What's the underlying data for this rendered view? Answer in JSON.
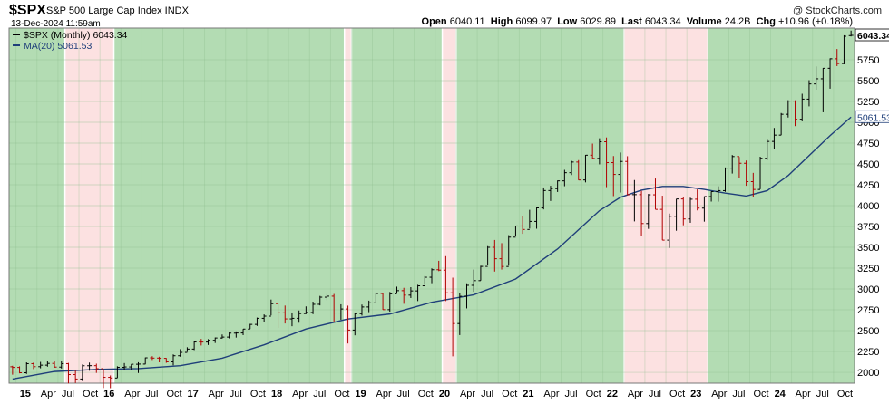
{
  "header": {
    "symbol": "$SPX",
    "name": "S&P 500 Large Cap Index  INDX",
    "date": "13-Dec-2024 11:59am",
    "copyright": "@ StockCharts.com",
    "ohlc": [
      {
        "label": "Open",
        "value": "6040.11"
      },
      {
        "label": "High",
        "value": "6099.97"
      },
      {
        "label": "Low",
        "value": "6029.89"
      },
      {
        "label": "Last",
        "value": "6043.34"
      },
      {
        "label": "Volume",
        "value": "24.2B"
      },
      {
        "label": "Chg",
        "value": "+10.96 (+0.18%)"
      }
    ]
  },
  "chart_data": {
    "type": "ohlc",
    "interval": "monthly",
    "x_start": "2014-12",
    "x_end": "2024-12",
    "y_range": [
      1870,
      6130
    ],
    "y_ticks": [
      2000,
      2250,
      2500,
      2750,
      3000,
      3250,
      3500,
      3750,
      4000,
      4250,
      4500,
      4750,
      5000,
      5250,
      5500,
      5750
    ],
    "x_tick_labels": [
      {
        "date": "2015-01",
        "label": "15"
      },
      {
        "date": "2015-04",
        "label": "Apr"
      },
      {
        "date": "2015-07",
        "label": "Jul"
      },
      {
        "date": "2015-10",
        "label": "Oct"
      },
      {
        "date": "2016-01",
        "label": "16"
      },
      {
        "date": "2016-04",
        "label": "Apr"
      },
      {
        "date": "2016-07",
        "label": "Jul"
      },
      {
        "date": "2016-10",
        "label": "Oct"
      },
      {
        "date": "2017-01",
        "label": "17"
      },
      {
        "date": "2017-04",
        "label": "Apr"
      },
      {
        "date": "2017-07",
        "label": "Jul"
      },
      {
        "date": "2017-10",
        "label": "Oct"
      },
      {
        "date": "2018-01",
        "label": "18"
      },
      {
        "date": "2018-04",
        "label": "Apr"
      },
      {
        "date": "2018-07",
        "label": "Jul"
      },
      {
        "date": "2018-10",
        "label": "Oct"
      },
      {
        "date": "2019-01",
        "label": "19"
      },
      {
        "date": "2019-04",
        "label": "Apr"
      },
      {
        "date": "2019-07",
        "label": "Jul"
      },
      {
        "date": "2019-10",
        "label": "Oct"
      },
      {
        "date": "2020-01",
        "label": "20"
      },
      {
        "date": "2020-04",
        "label": "Apr"
      },
      {
        "date": "2020-07",
        "label": "Jul"
      },
      {
        "date": "2020-10",
        "label": "Oct"
      },
      {
        "date": "2021-01",
        "label": "21"
      },
      {
        "date": "2021-04",
        "label": "Apr"
      },
      {
        "date": "2021-07",
        "label": "Jul"
      },
      {
        "date": "2021-10",
        "label": "Oct"
      },
      {
        "date": "2022-01",
        "label": "22"
      },
      {
        "date": "2022-04",
        "label": "Apr"
      },
      {
        "date": "2022-07",
        "label": "Jul"
      },
      {
        "date": "2022-10",
        "label": "Oct"
      },
      {
        "date": "2023-01",
        "label": "23"
      },
      {
        "date": "2023-04",
        "label": "Apr"
      },
      {
        "date": "2023-07",
        "label": "Jul"
      },
      {
        "date": "2023-10",
        "label": "Oct"
      },
      {
        "date": "2024-01",
        "label": "24"
      },
      {
        "date": "2024-04",
        "label": "Apr"
      },
      {
        "date": "2024-07",
        "label": "Jul"
      },
      {
        "date": "2024-10",
        "label": "Oct"
      }
    ],
    "legend": [
      {
        "label": "$SPX (Monthly) 6043.34",
        "color": "#000000"
      },
      {
        "label": "MA(20) 5061.53",
        "color": "#1f3f7a"
      }
    ],
    "last_price_label": "6043.34",
    "ma_label": "5061.53",
    "regimes": [
      {
        "from": "2014-12",
        "to": "2015-07",
        "state": "above_ma",
        "color": "#b3dcb3"
      },
      {
        "from": "2015-08",
        "to": "2016-02",
        "state": "below_ma",
        "color": "#fce1e1"
      },
      {
        "from": "2016-03",
        "to": "2018-11",
        "state": "above_ma",
        "color": "#b3dcb3"
      },
      {
        "from": "2018-12",
        "to": "2018-12",
        "state": "below_ma",
        "color": "#fce1e1"
      },
      {
        "from": "2019-01",
        "to": "2020-01",
        "state": "above_ma",
        "color": "#b3dcb3"
      },
      {
        "from": "2020-02",
        "to": "2020-03",
        "state": "below_ma",
        "color": "#fce1e1"
      },
      {
        "from": "2020-04",
        "to": "2022-03",
        "state": "above_ma",
        "color": "#b3dcb3"
      },
      {
        "from": "2022-04",
        "to": "2023-03",
        "state": "below_ma",
        "color": "#fce1e1"
      },
      {
        "from": "2023-04",
        "to": "2024-12",
        "state": "above_ma",
        "color": "#b3dcb3"
      }
    ],
    "ohlc_series": [
      [
        "2014-12",
        2067,
        2079,
        1972,
        2059
      ],
      [
        "2015-01",
        2059,
        2072,
        1988,
        1995
      ],
      [
        "2015-02",
        1995,
        2120,
        1981,
        2104
      ],
      [
        "2015-03",
        2104,
        2117,
        2039,
        2068
      ],
      [
        "2015-04",
        2068,
        2125,
        2048,
        2086
      ],
      [
        "2015-05",
        2086,
        2135,
        2068,
        2107
      ],
      [
        "2015-06",
        2107,
        2130,
        2056,
        2063
      ],
      [
        "2015-07",
        2063,
        2133,
        2045,
        2104
      ],
      [
        "2015-08",
        2104,
        2113,
        1867,
        1973
      ],
      [
        "2015-09",
        1973,
        2021,
        1872,
        1920
      ],
      [
        "2015-10",
        1920,
        2094,
        1894,
        2079
      ],
      [
        "2015-11",
        2079,
        2117,
        2019,
        2080
      ],
      [
        "2015-12",
        2080,
        2104,
        1993,
        2044
      ],
      [
        "2016-01",
        2044,
        2039,
        1812,
        1940
      ],
      [
        "2016-02",
        1940,
        1963,
        1810,
        1932
      ],
      [
        "2016-03",
        1932,
        2073,
        1933,
        2060
      ],
      [
        "2016-04",
        2060,
        2111,
        2033,
        2065
      ],
      [
        "2016-05",
        2065,
        2100,
        2026,
        2097
      ],
      [
        "2016-06",
        2097,
        2121,
        1992,
        2099
      ],
      [
        "2016-07",
        2099,
        2178,
        2096,
        2174
      ],
      [
        "2016-08",
        2174,
        2194,
        2148,
        2171
      ],
      [
        "2016-09",
        2171,
        2187,
        2120,
        2168
      ],
      [
        "2016-10",
        2168,
        2172,
        2114,
        2126
      ],
      [
        "2016-11",
        2126,
        2215,
        2084,
        2199
      ],
      [
        "2016-12",
        2199,
        2278,
        2187,
        2239
      ],
      [
        "2017-01",
        2239,
        2301,
        2245,
        2279
      ],
      [
        "2017-02",
        2279,
        2371,
        2267,
        2364
      ],
      [
        "2017-03",
        2364,
        2401,
        2322,
        2363
      ],
      [
        "2017-04",
        2363,
        2398,
        2328,
        2384
      ],
      [
        "2017-05",
        2384,
        2418,
        2352,
        2412
      ],
      [
        "2017-06",
        2412,
        2454,
        2405,
        2423
      ],
      [
        "2017-07",
        2423,
        2484,
        2407,
        2470
      ],
      [
        "2017-08",
        2470,
        2491,
        2417,
        2472
      ],
      [
        "2017-09",
        2472,
        2520,
        2446,
        2519
      ],
      [
        "2017-10",
        2519,
        2582,
        2520,
        2575
      ],
      [
        "2017-11",
        2575,
        2657,
        2557,
        2648
      ],
      [
        "2017-12",
        2648,
        2695,
        2605,
        2674
      ],
      [
        "2018-01",
        2674,
        2873,
        2683,
        2824
      ],
      [
        "2018-02",
        2824,
        2835,
        2533,
        2714
      ],
      [
        "2018-03",
        2714,
        2801,
        2586,
        2641
      ],
      [
        "2018-04",
        2641,
        2718,
        2553,
        2648
      ],
      [
        "2018-05",
        2648,
        2742,
        2595,
        2705
      ],
      [
        "2018-06",
        2705,
        2791,
        2698,
        2718
      ],
      [
        "2018-07",
        2718,
        2848,
        2698,
        2816
      ],
      [
        "2018-08",
        2816,
        2917,
        2803,
        2902
      ],
      [
        "2018-09",
        2902,
        2941,
        2864,
        2914
      ],
      [
        "2018-10",
        2914,
        2940,
        2604,
        2712
      ],
      [
        "2018-11",
        2712,
        2816,
        2631,
        2760
      ],
      [
        "2018-12",
        2760,
        2800,
        2346,
        2507
      ],
      [
        "2019-01",
        2507,
        2708,
        2444,
        2704
      ],
      [
        "2019-02",
        2704,
        2813,
        2681,
        2784
      ],
      [
        "2019-03",
        2784,
        2860,
        2722,
        2834
      ],
      [
        "2019-04",
        2834,
        2949,
        2848,
        2946
      ],
      [
        "2019-05",
        2946,
        2955,
        2750,
        2752
      ],
      [
        "2019-06",
        2752,
        2964,
        2728,
        2942
      ],
      [
        "2019-07",
        2942,
        3028,
        2952,
        2980
      ],
      [
        "2019-08",
        2980,
        3014,
        2822,
        2926
      ],
      [
        "2019-09",
        2926,
        3022,
        2892,
        2977
      ],
      [
        "2019-10",
        2977,
        3050,
        2855,
        3038
      ],
      [
        "2019-11",
        3038,
        3154,
        3051,
        3141
      ],
      [
        "2019-12",
        3141,
        3248,
        3070,
        3231
      ],
      [
        "2020-01",
        3231,
        3338,
        3214,
        3226
      ],
      [
        "2020-02",
        3226,
        3394,
        2855,
        2954
      ],
      [
        "2020-03",
        2954,
        3136,
        2192,
        2585
      ],
      [
        "2020-04",
        2585,
        2955,
        2447,
        2912
      ],
      [
        "2020-05",
        2912,
        3068,
        2767,
        3044
      ],
      [
        "2020-06",
        3044,
        3233,
        2966,
        3100
      ],
      [
        "2020-07",
        3100,
        3279,
        3101,
        3271
      ],
      [
        "2020-08",
        3271,
        3514,
        3284,
        3500
      ],
      [
        "2020-09",
        3500,
        3588,
        3209,
        3363
      ],
      [
        "2020-10",
        3363,
        3550,
        3233,
        3270
      ],
      [
        "2020-11",
        3270,
        3646,
        3280,
        3622
      ],
      [
        "2020-12",
        3622,
        3760,
        3633,
        3756
      ],
      [
        "2021-01",
        3756,
        3870,
        3662,
        3714
      ],
      [
        "2021-02",
        3714,
        3950,
        3725,
        3811
      ],
      [
        "2021-03",
        3811,
        3983,
        3723,
        3973
      ],
      [
        "2021-04",
        3973,
        4218,
        3955,
        4181
      ],
      [
        "2021-05",
        4181,
        4238,
        4056,
        4204
      ],
      [
        "2021-06",
        4204,
        4302,
        4164,
        4297
      ],
      [
        "2021-07",
        4297,
        4429,
        4233,
        4395
      ],
      [
        "2021-08",
        4395,
        4538,
        4367,
        4523
      ],
      [
        "2021-09",
        4523,
        4546,
        4306,
        4308
      ],
      [
        "2021-10",
        4308,
        4608,
        4279,
        4605
      ],
      [
        "2021-11",
        4605,
        4744,
        4560,
        4567
      ],
      [
        "2021-12",
        4567,
        4808,
        4495,
        4766
      ],
      [
        "2022-01",
        4766,
        4818,
        4222,
        4516
      ],
      [
        "2022-02",
        4516,
        4595,
        4114,
        4374
      ],
      [
        "2022-03",
        4374,
        4637,
        4157,
        4530
      ],
      [
        "2022-04",
        4530,
        4593,
        4124,
        4132
      ],
      [
        "2022-05",
        4132,
        4307,
        3811,
        4132
      ],
      [
        "2022-06",
        4132,
        4177,
        3636,
        3785
      ],
      [
        "2022-07",
        3785,
        4140,
        3721,
        4130
      ],
      [
        "2022-08",
        4130,
        4325,
        3955,
        3955
      ],
      [
        "2022-09",
        3955,
        4119,
        3585,
        3586
      ],
      [
        "2022-10",
        3586,
        3905,
        3492,
        3872
      ],
      [
        "2022-11",
        3872,
        4080,
        3699,
        4080
      ],
      [
        "2022-12",
        4080,
        4101,
        3764,
        3840
      ],
      [
        "2023-01",
        3840,
        4095,
        3794,
        4077
      ],
      [
        "2023-02",
        4077,
        4195,
        3943,
        3970
      ],
      [
        "2023-03",
        3970,
        4110,
        3808,
        4109
      ],
      [
        "2023-04",
        4109,
        4170,
        4049,
        4169
      ],
      [
        "2023-05",
        4169,
        4232,
        4048,
        4180
      ],
      [
        "2023-06",
        4180,
        4458,
        4166,
        4450
      ],
      [
        "2023-07",
        4450,
        4607,
        4385,
        4589
      ],
      [
        "2023-08",
        4589,
        4584,
        4336,
        4508
      ],
      [
        "2023-09",
        4508,
        4541,
        4238,
        4288
      ],
      [
        "2023-10",
        4288,
        4393,
        4104,
        4194
      ],
      [
        "2023-11",
        4194,
        4587,
        4197,
        4568
      ],
      [
        "2023-12",
        4568,
        4793,
        4547,
        4770
      ],
      [
        "2024-01",
        4770,
        4932,
        4683,
        4846
      ],
      [
        "2024-02",
        4846,
        5111,
        4845,
        5096
      ],
      [
        "2024-03",
        5096,
        5265,
        5057,
        5254
      ],
      [
        "2024-04",
        5254,
        5264,
        4954,
        5036
      ],
      [
        "2024-05",
        5036,
        5342,
        5011,
        5278
      ],
      [
        "2024-06",
        5278,
        5505,
        5191,
        5460
      ],
      [
        "2024-07",
        5460,
        5670,
        5391,
        5522
      ],
      [
        "2024-08",
        5522,
        5651,
        5120,
        5648
      ],
      [
        "2024-09",
        5648,
        5767,
        5403,
        5762
      ],
      [
        "2024-10",
        5762,
        5879,
        5674,
        5705
      ],
      [
        "2024-11",
        5705,
        6044,
        5696,
        6032
      ],
      [
        "2024-12",
        6040,
        6100,
        6030,
        6043
      ]
    ],
    "ma20_series": [
      [
        "2014-12",
        1920
      ],
      [
        "2015-06",
        2010
      ],
      [
        "2015-12",
        2035
      ],
      [
        "2016-06",
        2045
      ],
      [
        "2016-12",
        2080
      ],
      [
        "2017-06",
        2170
      ],
      [
        "2017-12",
        2330
      ],
      [
        "2018-06",
        2520
      ],
      [
        "2018-12",
        2640
      ],
      [
        "2019-06",
        2700
      ],
      [
        "2019-12",
        2840
      ],
      [
        "2020-06",
        2930
      ],
      [
        "2020-12",
        3120
      ],
      [
        "2021-06",
        3480
      ],
      [
        "2021-12",
        3940
      ],
      [
        "2022-03",
        4100
      ],
      [
        "2022-06",
        4185
      ],
      [
        "2022-09",
        4230
      ],
      [
        "2022-12",
        4230
      ],
      [
        "2023-03",
        4195
      ],
      [
        "2023-06",
        4150
      ],
      [
        "2023-09",
        4115
      ],
      [
        "2023-12",
        4180
      ],
      [
        "2024-03",
        4360
      ],
      [
        "2024-06",
        4600
      ],
      [
        "2024-09",
        4840
      ],
      [
        "2024-12",
        5062
      ]
    ]
  }
}
